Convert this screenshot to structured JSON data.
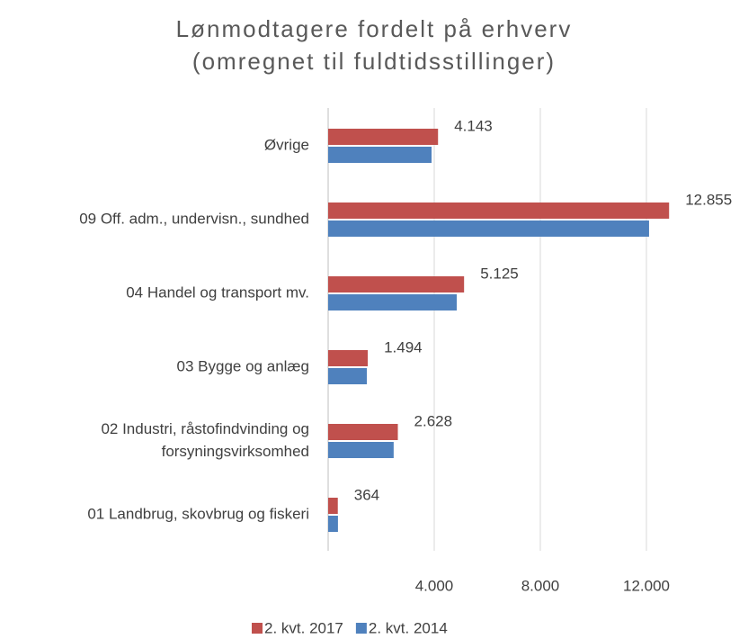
{
  "chart_data": {
    "type": "bar",
    "orientation": "horizontal",
    "title": "Lønmodtagere fordelt på erhverv\n(omregnet til fuldtidsstillinger)",
    "categories": [
      "Øvrige",
      "09 Off. adm., undervisn., sundhed",
      "04 Handel og transport mv.",
      "03 Bygge og anlæg",
      "02 Industri, råstofindvinding og\nforsyningsvirksomhed",
      "01 Landbrug, skovbrug og fiskeri"
    ],
    "series": [
      {
        "name": "2. kvt. 2017",
        "color": "#c0504d",
        "values": [
          4143,
          12855,
          5125,
          1494,
          2628,
          364
        ],
        "value_labels": [
          "4.143",
          "12.855",
          "5.125",
          "1.494",
          "2.628",
          "364"
        ]
      },
      {
        "name": "2. kvt. 2014",
        "color": "#4f81bd",
        "values": [
          3900,
          12100,
          4850,
          1460,
          2470,
          370
        ]
      }
    ],
    "xlim": [
      0,
      14000
    ],
    "xticks": [
      {
        "value": 4000,
        "label": "4.000"
      },
      {
        "value": 8000,
        "label": "8.000"
      },
      {
        "value": 12000,
        "label": "12.000"
      }
    ],
    "grid": true,
    "legend": "bottom"
  }
}
